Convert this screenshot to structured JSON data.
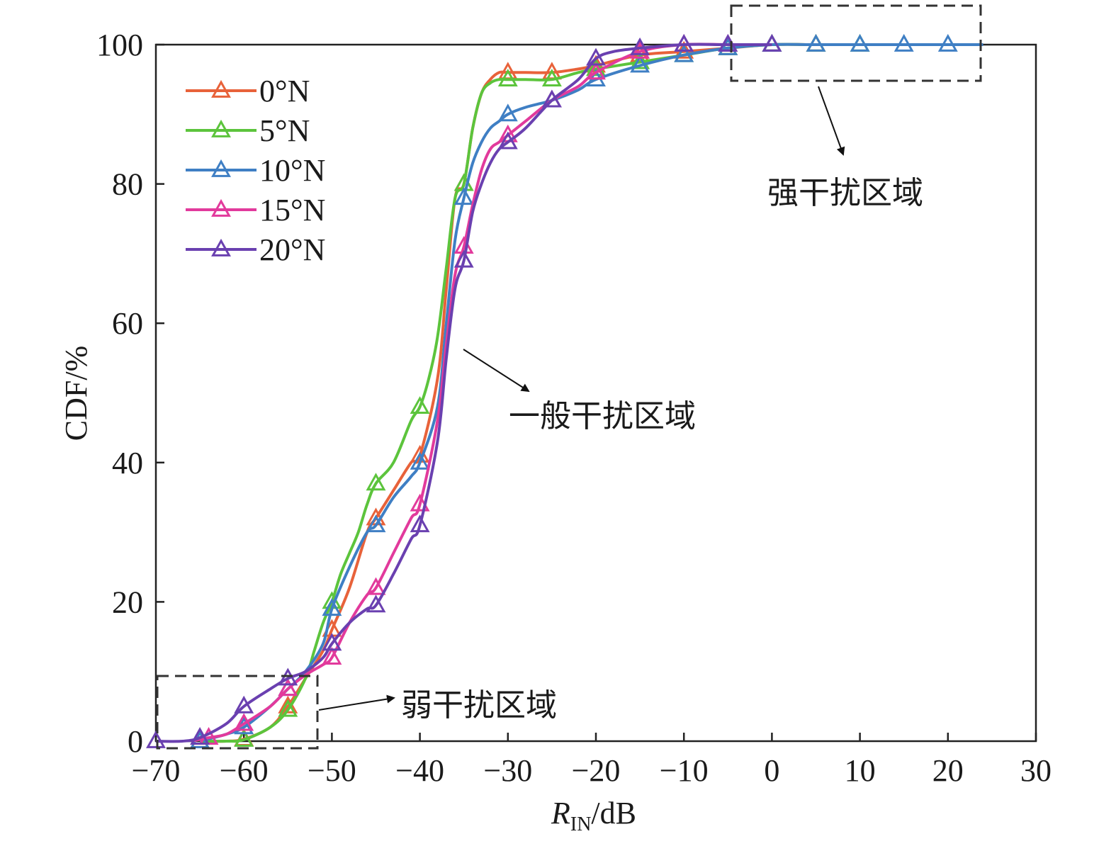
{
  "chart_data": {
    "type": "line",
    "xlabel_main": "R",
    "xlabel_sub": "IN",
    "xlabel_unit": "/dB",
    "ylabel": "CDF/%",
    "xlim": [
      -70,
      30
    ],
    "ylim": [
      0,
      100
    ],
    "xticks": [
      -70,
      -60,
      -50,
      -40,
      -30,
      -20,
      -10,
      0,
      10,
      20,
      30
    ],
    "yticks": [
      0,
      20,
      40,
      60,
      80,
      100
    ],
    "xtick_labels": [
      "−70",
      "−60",
      "−50",
      "−40",
      "−30",
      "−20",
      "−10",
      "0",
      "10",
      "20",
      "30"
    ],
    "ytick_labels": [
      "0",
      "20",
      "40",
      "60",
      "80",
      "100"
    ],
    "legend_position": "top-left",
    "grid": false,
    "marker": "triangle",
    "series": [
      {
        "name": "0°N",
        "color": "#e8623a",
        "x": [
          -65,
          -62,
          -60,
          -57,
          -55,
          -53,
          -51,
          -50,
          -48,
          -46,
          -45,
          -43,
          -41,
          -40,
          -38,
          -37,
          -36,
          -35,
          -34,
          -33,
          -32,
          -31,
          -30,
          -28,
          -25,
          -22,
          -20,
          -15,
          -10,
          -5,
          0,
          5,
          10,
          20,
          24
        ],
        "y": [
          0,
          0,
          0.3,
          2,
          5,
          9,
          13,
          16,
          22,
          30,
          32,
          36,
          40,
          41,
          52,
          65,
          78,
          80,
          88,
          93,
          95,
          96,
          96,
          96,
          96,
          96.5,
          97,
          98.5,
          99,
          99.5,
          100,
          100,
          100,
          100,
          100
        ]
      },
      {
        "name": "5°N",
        "color": "#5cc43c",
        "x": [
          -65,
          -62,
          -60,
          -57,
          -55,
          -53,
          -52,
          -51,
          -50,
          -49,
          -48,
          -47,
          -46,
          -45,
          -43,
          -41,
          -40,
          -39,
          -38,
          -37,
          -36,
          -35,
          -34,
          -33,
          -32,
          -31,
          -30,
          -28,
          -25,
          -22,
          -20,
          -15,
          -10,
          -5,
          0,
          5,
          10,
          20,
          24
        ],
        "y": [
          0,
          0,
          0.2,
          2,
          4.5,
          9,
          13,
          17,
          20,
          24,
          27,
          30,
          34,
          37,
          40,
          46,
          48,
          52,
          58,
          68,
          78,
          80,
          88,
          93,
          94.5,
          95,
          95,
          95,
          95,
          96,
          96.5,
          97.5,
          98.5,
          99.5,
          100,
          100,
          100,
          100,
          100
        ]
      },
      {
        "name": "10°N",
        "color": "#3f7fc4",
        "x": [
          -65,
          -62,
          -60,
          -57,
          -55,
          -53,
          -51,
          -50,
          -48,
          -46,
          -45,
          -43,
          -41,
          -40,
          -38,
          -37,
          -36,
          -35,
          -34,
          -33,
          -32,
          -31,
          -30,
          -28,
          -25,
          -22,
          -20,
          -15,
          -10,
          -5,
          0,
          5,
          10,
          15,
          20,
          24
        ],
        "y": [
          0,
          1,
          2,
          5,
          7.5,
          10,
          14,
          19,
          25,
          30,
          31,
          35,
          38,
          40,
          48,
          60,
          72,
          78,
          83,
          86,
          88,
          89,
          90,
          91,
          92,
          93.5,
          95,
          97,
          98.5,
          99.5,
          100,
          100,
          100,
          100,
          100,
          100
        ]
      },
      {
        "name": "15°N",
        "color": "#e23a9c",
        "x": [
          -66,
          -64,
          -62,
          -60,
          -57,
          -55,
          -53,
          -51,
          -50,
          -48,
          -46,
          -45,
          -43,
          -41,
          -40,
          -38,
          -37,
          -36,
          -35,
          -34,
          -33,
          -32,
          -31,
          -30,
          -28,
          -25,
          -22,
          -20,
          -15,
          -10,
          -5,
          0
        ],
        "y": [
          0,
          0.5,
          1,
          2.5,
          5,
          7.5,
          9.5,
          11,
          12,
          17,
          21,
          22,
          27,
          32,
          34,
          46,
          57,
          67,
          71,
          77,
          82,
          85,
          86,
          87,
          89,
          92,
          94,
          96,
          99,
          100,
          100,
          100
        ]
      },
      {
        "name": "20°N",
        "color": "#6a40b0",
        "x": [
          -70,
          -67,
          -65,
          -62,
          -60,
          -57,
          -55,
          -53,
          -51,
          -50,
          -48,
          -46,
          -45,
          -43,
          -41,
          -40,
          -38,
          -37,
          -36,
          -35,
          -34,
          -33,
          -32,
          -31,
          -30,
          -28,
          -25,
          -22,
          -20,
          -18,
          -15,
          -10,
          -5,
          0
        ],
        "y": [
          0,
          0,
          0.5,
          2.5,
          5,
          7.5,
          9,
          10,
          12,
          14,
          17,
          19,
          19.5,
          24,
          29,
          31,
          43,
          55,
          65,
          69,
          76,
          80,
          83,
          85,
          86,
          88,
          92,
          95,
          98,
          99,
          99.5,
          100,
          100,
          100
        ]
      }
    ],
    "markers": [
      {
        "series": 0,
        "x": [
          -65,
          -60,
          -55,
          -50,
          -45,
          -40,
          -35,
          -30,
          -25,
          -20,
          -15,
          -10,
          -5,
          0,
          5
        ]
      },
      {
        "series": 1,
        "x": [
          -60,
          -55,
          -50,
          -45,
          -40,
          -35,
          -30,
          -25,
          -20,
          -15,
          -10,
          -5,
          0,
          5,
          10
        ]
      },
      {
        "series": 2,
        "x": [
          -65,
          -60,
          -55,
          -50,
          -45,
          -40,
          -35,
          -30,
          -25,
          -20,
          -15,
          -10,
          -5,
          0,
          5,
          10,
          15,
          20
        ]
      },
      {
        "series": 3,
        "x": [
          -64,
          -60,
          -55,
          -50,
          -45,
          -40,
          -35,
          -30,
          -25,
          -20,
          -15,
          -10,
          -5
        ]
      },
      {
        "series": 4,
        "x": [
          -70,
          -65,
          -60,
          -55,
          -50,
          -45,
          -40,
          -35,
          -30,
          -25,
          -20,
          -15,
          -10,
          -5,
          0
        ]
      }
    ],
    "annotations": {
      "strong": "强干扰区域",
      "general": "一般干扰区域",
      "weak": "弱干扰区域"
    }
  }
}
